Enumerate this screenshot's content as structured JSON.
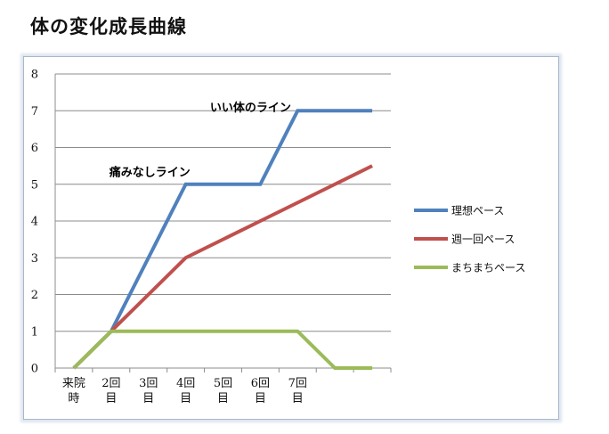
{
  "title": "体の変化成長曲線",
  "chart_data": {
    "type": "line",
    "categories": [
      [
        "来院",
        "時"
      ],
      [
        "2回",
        "目"
      ],
      [
        "3回",
        "目"
      ],
      [
        "4回",
        "目"
      ],
      [
        "5回",
        "目"
      ],
      [
        "6回",
        "目"
      ],
      [
        "7回",
        "目"
      ],
      [
        "",
        ""
      ],
      [
        "",
        ""
      ]
    ],
    "ylim": [
      0,
      8
    ],
    "yticks": [
      0,
      1,
      2,
      3,
      4,
      5,
      6,
      7,
      8
    ],
    "grid": true,
    "legend_position": "right",
    "series": [
      {
        "name": "理想ペース",
        "color": "#4f81bd",
        "values": [
          0,
          1,
          3,
          5,
          5,
          5,
          7,
          7,
          7
        ]
      },
      {
        "name": "週一回ペース",
        "color": "#c0504d",
        "values": [
          0,
          1,
          2,
          3,
          3.5,
          4,
          4.5,
          5,
          5.5
        ]
      },
      {
        "name": "まちまちペース",
        "color": "#9bbb59",
        "values": [
          0,
          1,
          1,
          1,
          1,
          1,
          1,
          0,
          0
        ]
      }
    ],
    "annotations": [
      {
        "text": "いい体のライン",
        "x_index": 4.15,
        "y": 7.1
      },
      {
        "text": "痛みなしライン",
        "x_index": 1.45,
        "y": 5.35
      }
    ]
  }
}
